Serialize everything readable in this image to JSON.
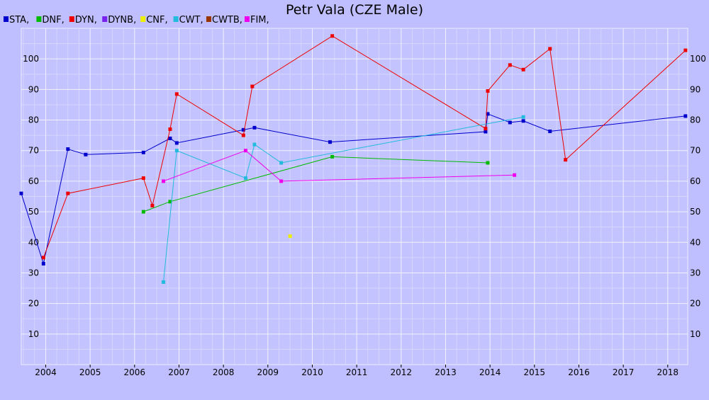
{
  "chart_data": {
    "type": "line",
    "title": "Petr Vala (CZE Male)",
    "xlabel": "",
    "ylabel": "",
    "xlim": [
      2003.45,
      2018.45
    ],
    "ylim": [
      0,
      110
    ],
    "x_ticks": [
      "2004",
      "2005",
      "2006",
      "2007",
      "2008",
      "2009",
      "2010",
      "2011",
      "2012",
      "2013",
      "2014",
      "2015",
      "2016",
      "2017",
      "2018"
    ],
    "y_ticks": [
      "10",
      "20",
      "30",
      "40",
      "50",
      "60",
      "70",
      "80",
      "90",
      "100"
    ],
    "grid": true,
    "legend_position": "top-left",
    "series": [
      {
        "name": "STA,",
        "color": "#0000cc",
        "points": [
          [
            2003.45,
            56
          ],
          [
            2003.95,
            33
          ],
          [
            2004.5,
            70.5
          ],
          [
            2004.9,
            68.7
          ],
          [
            2006.2,
            69.4
          ],
          [
            2006.8,
            74
          ],
          [
            2006.95,
            72.5
          ],
          [
            2008.45,
            76.8
          ],
          [
            2008.7,
            77.5
          ],
          [
            2010.4,
            72.8
          ],
          [
            2013.9,
            76.2
          ],
          [
            2013.95,
            82
          ],
          [
            2014.45,
            79.2
          ],
          [
            2014.75,
            79.7
          ],
          [
            2015.35,
            76.3
          ],
          [
            2018.4,
            81.3
          ]
        ]
      },
      {
        "name": "DNF,",
        "color": "#00bb00",
        "points": [
          [
            2006.2,
            50
          ],
          [
            2006.8,
            53.3
          ],
          [
            2010.45,
            68
          ],
          [
            2013.95,
            66
          ]
        ]
      },
      {
        "name": "DYN,",
        "color": "#ee0000",
        "points": [
          [
            2003.95,
            35
          ],
          [
            2004.5,
            56
          ],
          [
            2006.2,
            61
          ],
          [
            2006.4,
            52
          ],
          [
            2006.8,
            77
          ],
          [
            2006.95,
            88.5
          ],
          [
            2008.45,
            75
          ],
          [
            2008.65,
            91
          ],
          [
            2010.45,
            107.5
          ],
          [
            2013.9,
            77.2
          ],
          [
            2013.95,
            89.5
          ],
          [
            2014.45,
            98
          ],
          [
            2014.75,
            96.5
          ],
          [
            2015.35,
            103.3
          ],
          [
            2015.7,
            67
          ],
          [
            2018.4,
            102.8
          ]
        ]
      },
      {
        "name": "DYNB,",
        "color": "#7722ee",
        "points": []
      },
      {
        "name": "CNF,",
        "color": "#eeee00",
        "points": [
          [
            2009.5,
            42
          ]
        ]
      },
      {
        "name": "CWT,",
        "color": "#22bbdd",
        "points": [
          [
            2006.65,
            27
          ],
          [
            2006.95,
            70
          ],
          [
            2008.5,
            61
          ],
          [
            2008.7,
            72
          ],
          [
            2009.3,
            66
          ],
          [
            2014.75,
            81
          ]
        ]
      },
      {
        "name": "CWTB,",
        "color": "#993300",
        "points": []
      },
      {
        "name": "FIM,",
        "color": "#ee00ee",
        "points": [
          [
            2006.65,
            60
          ],
          [
            2008.5,
            70
          ],
          [
            2009.3,
            60
          ],
          [
            2014.55,
            62
          ]
        ]
      }
    ]
  }
}
